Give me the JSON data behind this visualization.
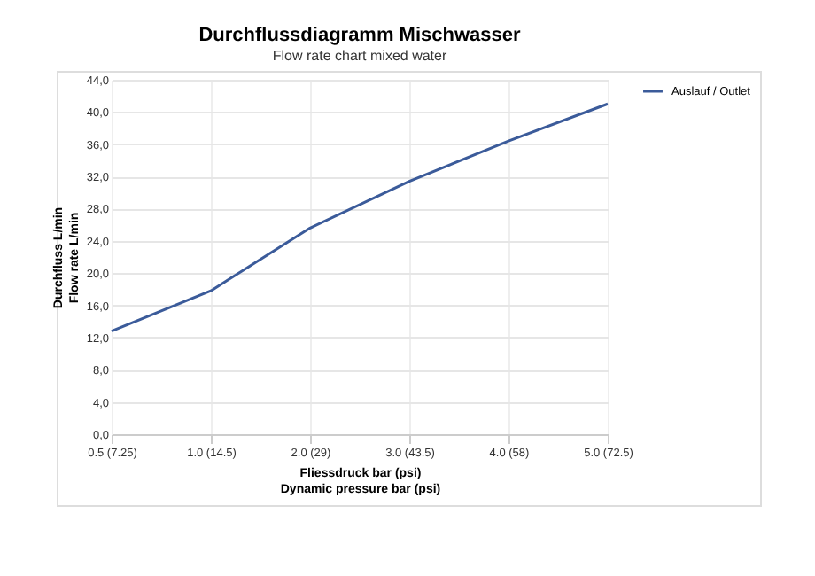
{
  "chart_data": {
    "type": "line",
    "title": "Durchflussdiagramm Mischwasser",
    "subtitle": "Flow rate chart mixed water",
    "xlabel": "Fliessdruck bar (psi)\nDynamic pressure bar (psi)",
    "ylabel": "Durchfluss L/min\nFlow rate L/min",
    "categories": [
      "0.5 (7.25)",
      "1.0 (14.5)",
      "2.0 (29)",
      "3.0 (43.5)",
      "4.0 (58)",
      "5.0 (72.5)"
    ],
    "series": [
      {
        "name": "Auslauf / Outlet",
        "color": "#3b5b9a",
        "values": [
          12.8,
          17.8,
          25.6,
          31.4,
          36.4,
          41.0
        ]
      }
    ],
    "ylim": [
      0,
      44
    ],
    "yticks": [
      {
        "value": 0,
        "label": "0,0"
      },
      {
        "value": 4,
        "label": "4,0"
      },
      {
        "value": 8,
        "label": "8,0"
      },
      {
        "value": 12,
        "label": "12,0"
      },
      {
        "value": 16,
        "label": "16,0"
      },
      {
        "value": 20,
        "label": "20,0"
      },
      {
        "value": 24,
        "label": "24,0"
      },
      {
        "value": 28,
        "label": "28,0"
      },
      {
        "value": 32,
        "label": "32,0"
      },
      {
        "value": 36,
        "label": "36,0"
      },
      {
        "value": 40,
        "label": "40,0"
      },
      {
        "value": 44,
        "label": "44,0"
      }
    ],
    "grid": true,
    "legend": "right",
    "marker": "none",
    "line_style": "solid"
  }
}
